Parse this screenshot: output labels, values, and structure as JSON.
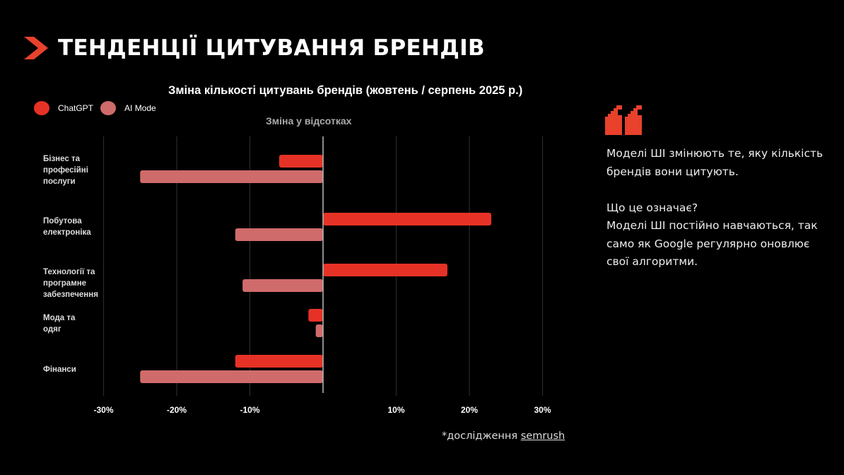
{
  "header": {
    "title": "ТЕНДЕНЦІЇ ЦИТУВАННЯ БРЕНДІВ",
    "accent_color": "#e8412c"
  },
  "chart_data": {
    "type": "bar",
    "orientation": "horizontal",
    "title": "Зміна кількості цитувань брендів (жовтень / серпень 2025 р.)",
    "subtitle": "Зміна у відсотках",
    "xlabel": "Зміна у відсотках",
    "ylabel": "",
    "xlim": [
      -30,
      30
    ],
    "grid": true,
    "legend_position": "top-left",
    "x_ticks": [
      -30,
      -20,
      -10,
      10,
      20,
      30
    ],
    "x_tick_labels": [
      "-30%",
      "-20%",
      "-10%",
      "10%",
      "20%",
      "30%"
    ],
    "categories": [
      [
        "Бізнес та",
        "професійні",
        "послуги"
      ],
      [
        "Побутова",
        "електроніка"
      ],
      [
        "Технології та",
        "програмне",
        "забезпечення"
      ],
      [
        "Мода та",
        "одяг"
      ],
      [
        "Фінанси"
      ]
    ],
    "series": [
      {
        "name": "ChatGPT",
        "color": "#e63226",
        "values": [
          -6,
          23,
          17,
          -2,
          -12
        ]
      },
      {
        "name": "AI Mode",
        "color": "#d06b6b",
        "values": [
          -25,
          -12,
          -11,
          -1,
          -25
        ]
      }
    ]
  },
  "quote": {
    "paragraph1": "Моделі ШІ змінюють те, яку кількість брендів вони цитують.",
    "question": "Що це означає?",
    "paragraph2": "Моделі ШІ постійно навчаються, так само як Google регулярно оновлює свої алгоритми."
  },
  "source": {
    "prefix": "*дослідження ",
    "link_text": "semrush"
  }
}
